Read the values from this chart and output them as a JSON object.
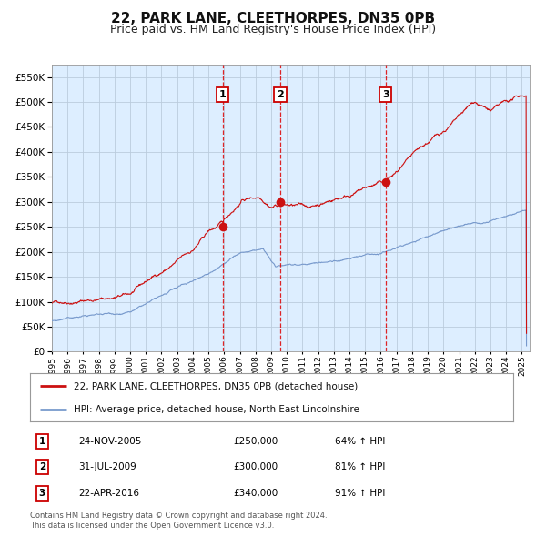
{
  "title": "22, PARK LANE, CLEETHORPES, DN35 0PB",
  "subtitle": "Price paid vs. HM Land Registry's House Price Index (HPI)",
  "title_fontsize": 11,
  "subtitle_fontsize": 9,
  "ylim": [
    0,
    575000
  ],
  "yticks": [
    0,
    50000,
    100000,
    150000,
    200000,
    250000,
    300000,
    350000,
    400000,
    450000,
    500000,
    550000
  ],
  "background_color": "#ffffff",
  "plot_bg_color": "#ddeeff",
  "grid_color": "#bbccdd",
  "red_line_color": "#cc1111",
  "blue_line_color": "#7799cc",
  "transactions": [
    {
      "label": "1",
      "date_num": 2005.9,
      "price": 250000,
      "date_str": "24-NOV-2005",
      "pct": "64%"
    },
    {
      "label": "2",
      "date_num": 2009.58,
      "price": 300000,
      "date_str": "31-JUL-2009",
      "pct": "81%"
    },
    {
      "label": "3",
      "date_num": 2016.31,
      "price": 340000,
      "date_str": "22-APR-2016",
      "pct": "91%"
    }
  ],
  "legend_line1": "22, PARK LANE, CLEETHORPES, DN35 0PB (detached house)",
  "legend_line2": "HPI: Average price, detached house, North East Lincolnshire",
  "footnote": "Contains HM Land Registry data © Crown copyright and database right 2024.\nThis data is licensed under the Open Government Licence v3.0.",
  "xmin": 1995.0,
  "xmax": 2025.5,
  "xticks": [
    1995,
    1996,
    1997,
    1998,
    1999,
    2000,
    2001,
    2002,
    2003,
    2004,
    2005,
    2006,
    2007,
    2008,
    2009,
    2010,
    2011,
    2012,
    2013,
    2014,
    2015,
    2016,
    2017,
    2018,
    2019,
    2020,
    2021,
    2022,
    2023,
    2024,
    2025
  ]
}
